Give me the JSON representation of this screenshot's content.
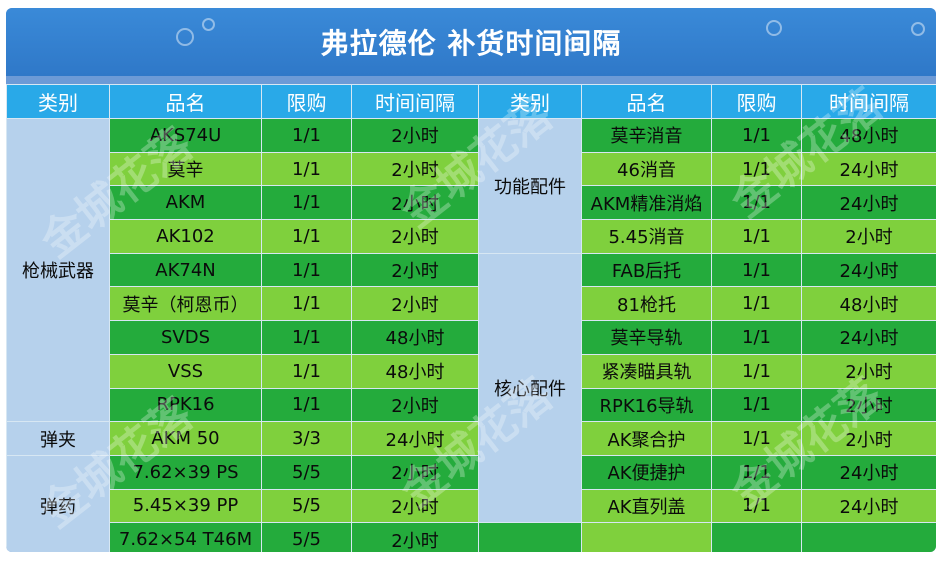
{
  "title": "弗拉德伦 补货时间间隔",
  "headers": [
    "类别",
    "品名",
    "限购",
    "时间间隔",
    "类别",
    "品名",
    "限购",
    "时间间隔"
  ],
  "watermark": "金城花落",
  "left": {
    "categories": [
      "枪械武器",
      "弹夹",
      "弹药"
    ],
    "rows": [
      {
        "name": "AKS74U",
        "limit": "1/1",
        "time": "2小时"
      },
      {
        "name": "莫辛",
        "limit": "1/1",
        "time": "2小时"
      },
      {
        "name": "AKM",
        "limit": "1/1",
        "time": "2小时"
      },
      {
        "name": "AK102",
        "limit": "1/1",
        "time": "2小时"
      },
      {
        "name": "AK74N",
        "limit": "1/1",
        "time": "2小时"
      },
      {
        "name": "莫辛（柯恩币）",
        "limit": "1/1",
        "time": "2小时"
      },
      {
        "name": "SVDS",
        "limit": "1/1",
        "time": "48小时"
      },
      {
        "name": "VSS",
        "limit": "1/1",
        "time": "48小时"
      },
      {
        "name": "RPK16",
        "limit": "1/1",
        "time": "2小时"
      },
      {
        "name": "AKM 50",
        "limit": "3/3",
        "time": "24小时"
      },
      {
        "name": "7.62×39 PS",
        "limit": "5/5",
        "time": "2小时"
      },
      {
        "name": "5.45×39 PP",
        "limit": "5/5",
        "time": "2小时"
      },
      {
        "name": "7.62×54 T46M",
        "limit": "5/5",
        "time": "2小时"
      }
    ]
  },
  "right": {
    "categories": [
      "功能配件",
      "核心配件"
    ],
    "rows": [
      {
        "name": "莫辛消音",
        "limit": "1/1",
        "time": "48小时"
      },
      {
        "name": "46消音",
        "limit": "1/1",
        "time": "24小时"
      },
      {
        "name": "AKM精准消焰",
        "limit": "1/1",
        "time": "24小时"
      },
      {
        "name": "5.45消音",
        "limit": "1/1",
        "time": "2小时"
      },
      {
        "name": "FAB后托",
        "limit": "1/1",
        "time": "24小时"
      },
      {
        "name": "81枪托",
        "limit": "1/1",
        "time": "48小时"
      },
      {
        "name": "莫辛导轨",
        "limit": "1/1",
        "time": "24小时"
      },
      {
        "name": "紧凑瞄具轨",
        "limit": "1/1",
        "time": "2小时"
      },
      {
        "name": "RPK16导轨",
        "limit": "1/1",
        "time": "2小时"
      },
      {
        "name": "AK聚合护",
        "limit": "1/1",
        "time": "2小时"
      },
      {
        "name": "AK便捷护",
        "limit": "1/1",
        "time": "24小时"
      },
      {
        "name": "AK直列盖",
        "limit": "1/1",
        "time": "24小时"
      }
    ]
  }
}
